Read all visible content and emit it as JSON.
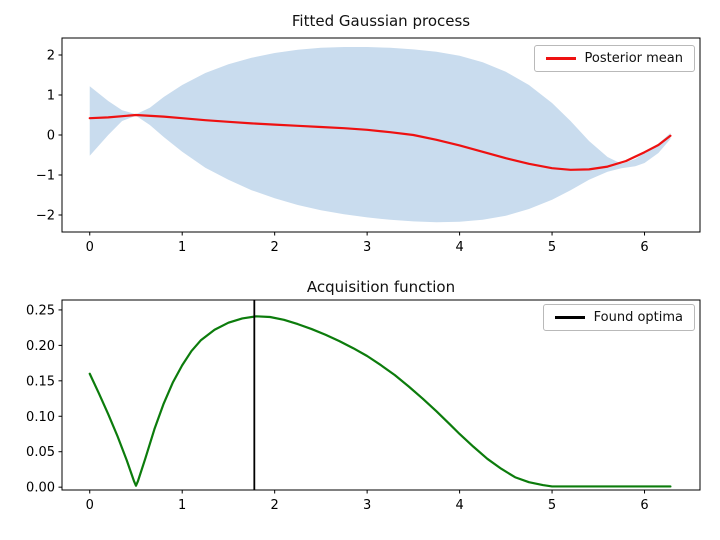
{
  "figure": {
    "background": "#ffffff",
    "text_color": "#111111"
  },
  "chart_data": [
    {
      "type": "line",
      "title": "Fitted Gaussian process",
      "xlabel": "",
      "ylabel": "",
      "grid": false,
      "xlim": [
        -0.3,
        6.6
      ],
      "ylim": [
        -2.425,
        2.425
      ],
      "xticks": [
        0,
        1,
        2,
        3,
        4,
        5,
        6
      ],
      "xtick_labels": [
        "0",
        "1",
        "2",
        "3",
        "4",
        "5",
        "6"
      ],
      "yticks": [
        -2,
        -1,
        0,
        1,
        2
      ],
      "ytick_labels": [
        "−2",
        "−1",
        "0",
        "1",
        "2"
      ],
      "legend": {
        "position": "upper right",
        "entries": [
          {
            "label": "Posterior mean",
            "color": "#ee1111"
          }
        ]
      },
      "band": {
        "name": "posterior-uncertainty-band",
        "color": "#c9dcee",
        "x": [
          0,
          0.2,
          0.35,
          0.5,
          0.65,
          0.8,
          1,
          1.25,
          1.5,
          1.75,
          2,
          2.25,
          2.5,
          2.75,
          3,
          3.25,
          3.5,
          3.75,
          4,
          4.25,
          4.5,
          4.75,
          5,
          5.2,
          5.4,
          5.6,
          5.75,
          5.9,
          6,
          6.15,
          6.28
        ],
        "upper": [
          1.22,
          0.85,
          0.62,
          0.52,
          0.68,
          0.95,
          1.25,
          1.55,
          1.77,
          1.93,
          2.05,
          2.13,
          2.18,
          2.2,
          2.2,
          2.18,
          2.14,
          2.08,
          1.98,
          1.82,
          1.58,
          1.25,
          0.8,
          0.35,
          -0.15,
          -0.55,
          -0.72,
          -0.6,
          -0.45,
          -0.22,
          0.05
        ],
        "lower": [
          -0.52,
          0,
          0.35,
          0.48,
          0.25,
          -0.05,
          -0.42,
          -0.82,
          -1.12,
          -1.38,
          -1.58,
          -1.75,
          -1.88,
          -1.98,
          -2.06,
          -2.12,
          -2.16,
          -2.18,
          -2.17,
          -2.12,
          -2.02,
          -1.85,
          -1.62,
          -1.38,
          -1.12,
          -0.92,
          -0.83,
          -0.78,
          -0.7,
          -0.45,
          -0.1
        ]
      },
      "series": [
        {
          "name": "Posterior mean",
          "color": "#ee1111",
          "width": 2.2,
          "x": [
            0,
            0.2,
            0.5,
            0.8,
            1,
            1.25,
            1.5,
            1.75,
            2,
            2.25,
            2.5,
            2.75,
            3,
            3.25,
            3.5,
            3.75,
            4,
            4.25,
            4.5,
            4.75,
            5,
            5.2,
            5.4,
            5.6,
            5.8,
            6,
            6.15,
            6.28
          ],
          "y": [
            0.42,
            0.44,
            0.5,
            0.46,
            0.42,
            0.37,
            0.33,
            0.29,
            0.26,
            0.23,
            0.2,
            0.17,
            0.13,
            0.07,
            0,
            -0.12,
            -0.26,
            -0.42,
            -0.58,
            -0.72,
            -0.83,
            -0.87,
            -0.86,
            -0.79,
            -0.65,
            -0.43,
            -0.25,
            -0.02
          ]
        }
      ]
    },
    {
      "type": "line",
      "title": "Acquisition function",
      "xlabel": "",
      "ylabel": "",
      "grid": false,
      "xlim": [
        -0.3,
        6.6
      ],
      "ylim": [
        -0.004,
        0.264
      ],
      "xticks": [
        0,
        1,
        2,
        3,
        4,
        5,
        6
      ],
      "xtick_labels": [
        "0",
        "1",
        "2",
        "3",
        "4",
        "5",
        "6"
      ],
      "yticks": [
        0,
        0.05,
        0.1,
        0.15,
        0.2,
        0.25
      ],
      "ytick_labels": [
        "0.00",
        "0.05",
        "0.10",
        "0.15",
        "0.20",
        "0.25"
      ],
      "legend": {
        "position": "upper right",
        "entries": [
          {
            "label": "Found optima",
            "color": "#000000"
          }
        ]
      },
      "vline": {
        "name": "found-optima-line",
        "x": 1.78,
        "color": "#000000",
        "width": 1.8
      },
      "series": [
        {
          "name": "Acquisition function",
          "color": "#0c7c0c",
          "width": 2.2,
          "x": [
            0,
            0.1,
            0.2,
            0.3,
            0.4,
            0.48,
            0.5,
            0.52,
            0.6,
            0.7,
            0.8,
            0.9,
            1,
            1.1,
            1.2,
            1.35,
            1.5,
            1.65,
            1.8,
            1.95,
            2.1,
            2.25,
            2.4,
            2.55,
            2.7,
            2.85,
            3,
            3.15,
            3.3,
            3.45,
            3.6,
            3.75,
            3.9,
            4,
            4.15,
            4.3,
            4.45,
            4.6,
            4.75,
            4.9,
            5,
            5.25,
            5.5,
            5.75,
            6,
            6.28
          ],
          "y": [
            0.16,
            0.132,
            0.103,
            0.072,
            0.038,
            0.008,
            0.002,
            0.008,
            0.04,
            0.082,
            0.118,
            0.148,
            0.172,
            0.192,
            0.207,
            0.222,
            0.232,
            0.238,
            0.241,
            0.24,
            0.236,
            0.23,
            0.223,
            0.215,
            0.206,
            0.196,
            0.185,
            0.172,
            0.158,
            0.142,
            0.125,
            0.107,
            0.088,
            0.075,
            0.057,
            0.04,
            0.026,
            0.014,
            0.007,
            0.003,
            0.001,
            0.001,
            0.001,
            0.001,
            0.001,
            0.001
          ]
        }
      ]
    }
  ]
}
